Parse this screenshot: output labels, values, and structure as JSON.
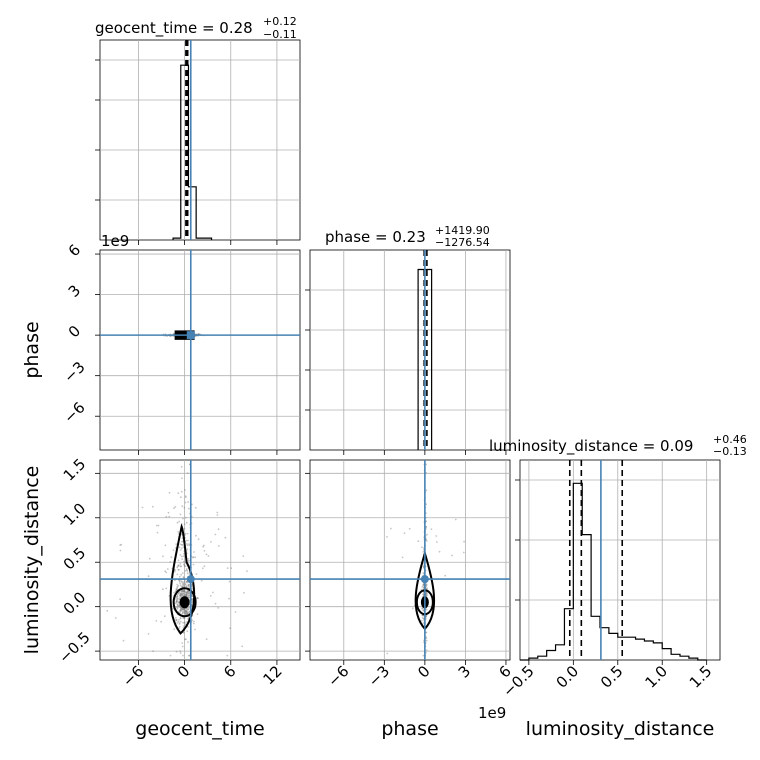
{
  "chart_data": {
    "type": "corner",
    "parameters": [
      "geocent_time",
      "phase",
      "luminosity_distance"
    ],
    "truths": {
      "geocent_time": 0.8,
      "phase": 0.0,
      "luminosity_distance": 0.31
    },
    "colors": {
      "truth": "#4682b4",
      "hist": "#000000",
      "grid": "#b0b0b0",
      "points": "#808080"
    },
    "grid": true,
    "diag": [
      {
        "param": "geocent_time",
        "title": "geocent_time = 0.28",
        "title_sup": "+0.12",
        "title_sub": "−0.11",
        "xlim": [
          -11,
          15
        ],
        "quantile_lines": [
          0.17,
          0.28,
          0.4
        ],
        "bin_edges": [
          -1.5,
          -0.5,
          0.5,
          1.5,
          2.5,
          3.5
        ],
        "counts": [
          0.01,
          0.92,
          0.28,
          0.01,
          0.01
        ],
        "ymax": 1.0,
        "y_ticks": [
          0.2,
          0.45,
          0.7,
          0.9
        ]
      },
      {
        "param": "phase",
        "title": "phase = 0.23",
        "title_sup": "+1419.90",
        "title_sub": "−1276.54",
        "xlim": [
          -8.5,
          6.3
        ],
        "quantile_lines": [
          -0.05,
          0.0,
          0.15
        ],
        "bin_edges": [
          -0.5,
          0.0,
          0.5
        ],
        "counts": [
          0.95,
          0.95
        ],
        "ymax": 1.0,
        "y_ticks": [
          0.2,
          0.4,
          0.6,
          0.8
        ]
      },
      {
        "param": "luminosity_distance",
        "title": "luminosity_distance = 0.09",
        "title_sup": "+0.46",
        "title_sub": "−0.13",
        "xlim": [
          -0.6,
          1.65
        ],
        "quantile_lines": [
          -0.04,
          0.09,
          0.55
        ],
        "bin_edges": [
          -0.6,
          -0.5,
          -0.4,
          -0.3,
          -0.2,
          -0.1,
          0.0,
          0.1,
          0.2,
          0.3,
          0.4,
          0.5,
          0.6,
          0.7,
          0.8,
          0.9,
          1.0,
          1.1,
          1.2,
          1.3,
          1.4,
          1.5
        ],
        "counts": [
          0.0,
          0.01,
          0.02,
          0.05,
          0.08,
          0.27,
          0.93,
          0.66,
          0.23,
          0.17,
          0.14,
          0.12,
          0.12,
          0.11,
          0.1,
          0.09,
          0.06,
          0.03,
          0.02,
          0.01,
          0.0
        ],
        "ymax": 1.0,
        "y_ticks": [
          0.3,
          0.6,
          0.9
        ]
      }
    ],
    "axes": {
      "geocent_time": {
        "ticks": [
          -6,
          0,
          6,
          12
        ],
        "labels": [
          "−6",
          "0",
          "6",
          "12"
        ],
        "label": "geocent_time"
      },
      "phase_x": {
        "ticks": [
          -6,
          -3,
          0,
          3,
          6
        ],
        "labels": [
          "−6",
          "−3",
          "0",
          "3",
          "6"
        ],
        "label": "phase",
        "offset": "1e9"
      },
      "phase_y": {
        "lim": [
          -8.5,
          6.3
        ],
        "ticks": [
          6,
          3,
          0,
          -3,
          -6
        ],
        "labels": [
          "6",
          "3",
          "0",
          "−3",
          "−6"
        ],
        "label": "phase",
        "offset": "1e9"
      },
      "luminosity_distance_x": {
        "ticks": [
          -0.5,
          0.0,
          0.5,
          1.0,
          1.5
        ],
        "labels": [
          "−0.5",
          "0.0",
          "0.5",
          "1.0",
          "1.5"
        ],
        "label": "luminosity_distance"
      },
      "luminosity_distance_y": {
        "lim": [
          -0.6,
          1.65
        ],
        "ticks": [
          1.5,
          1.0,
          0.5,
          0.0,
          -0.5
        ],
        "labels": [
          "1.5",
          "1.0",
          "0.5",
          "0.0",
          "−0.5"
        ],
        "label": "luminosity_distance"
      }
    },
    "scatter_summary": {
      "geocent_time_vs_phase": {
        "center": [
          0.0,
          0.0
        ]
      },
      "geocent_time_vs_luminosity_distance": {
        "center": [
          0.0,
          0.05
        ]
      },
      "phase_vs_luminosity_distance": {
        "center": [
          0.0,
          0.05
        ]
      }
    }
  }
}
